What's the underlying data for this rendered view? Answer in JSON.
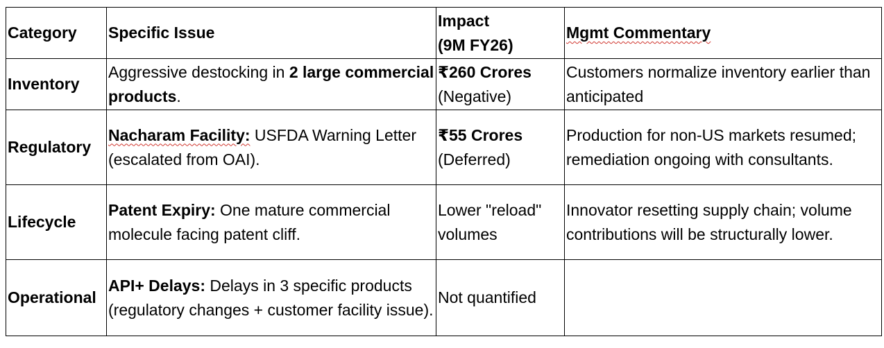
{
  "headers": {
    "category": "Category",
    "issue": "Specific Issue",
    "impact_line1": "Impact",
    "impact_line2": "(9M FY26)",
    "commentary": "Mgmt Commentary"
  },
  "rows": [
    {
      "category": "Inventory",
      "issue_pre": "Aggressive destocking in ",
      "issue_bold": "2 large commercial products",
      "issue_post": ".",
      "impact_bold": "₹260 Crores",
      "impact_note": "(Negative)",
      "commentary": "Customers normalize inventory earlier than anticipated"
    },
    {
      "category": "Regulatory",
      "issue_bold": "Nacharam Facility:",
      "issue_post": " USFDA Warning Letter (escalated from OAI).",
      "impact_bold": "₹55 Crores",
      "impact_note": "(Deferred)",
      "commentary": "Production for non-US markets resumed; remediation ongoing with consultants."
    },
    {
      "category": "Lifecycle",
      "issue_bold": "Patent Expiry:",
      "issue_post": " One mature commercial molecule facing patent cliff.",
      "impact_text": "Lower \"reload\" volumes",
      "commentary": "Innovator resetting supply chain; volume contributions will be structurally lower."
    },
    {
      "category": "Operational",
      "issue_bold": "API+ Delays:",
      "issue_post": " Delays in 3 specific products (regulatory changes + customer facility issue).",
      "impact_text": "Not quantified",
      "commentary": ""
    }
  ]
}
